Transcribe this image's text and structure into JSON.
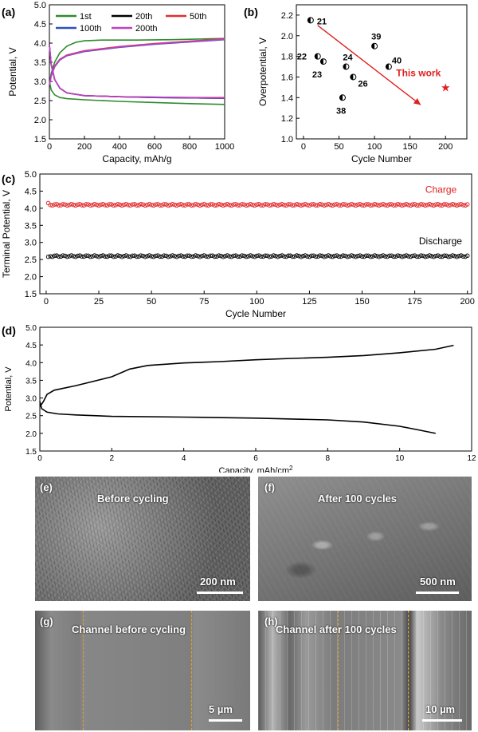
{
  "chart_data": [
    {
      "panel": "(a)",
      "type": "line",
      "xlabel": "Capacity, mAh/g",
      "ylabel": "Potential, V",
      "xlim": [
        0,
        1000
      ],
      "ylim": [
        1.5,
        5.0
      ],
      "xticks": [
        "0",
        "200",
        "400",
        "600",
        "800",
        "1000"
      ],
      "yticks": [
        "1.5",
        "2.0",
        "2.5",
        "3.0",
        "3.5",
        "4.0",
        "4.5",
        "5.0"
      ],
      "legend_placement": "top",
      "series": [
        {
          "name": "1st",
          "color": "#2e8b2e",
          "charge": [
            [
              0,
              2.9
            ],
            [
              10,
              3.2
            ],
            [
              30,
              3.5
            ],
            [
              60,
              3.75
            ],
            [
              100,
              3.92
            ],
            [
              150,
              4.02
            ],
            [
              200,
              4.06
            ],
            [
              300,
              4.08
            ],
            [
              500,
              4.08
            ],
            [
              700,
              4.09
            ],
            [
              1000,
              4.12
            ]
          ],
          "discharge": [
            [
              0,
              3.0
            ],
            [
              10,
              2.78
            ],
            [
              30,
              2.65
            ],
            [
              60,
              2.58
            ],
            [
              100,
              2.55
            ],
            [
              200,
              2.52
            ],
            [
              400,
              2.48
            ],
            [
              600,
              2.45
            ],
            [
              800,
              2.42
            ],
            [
              1000,
              2.4
            ]
          ]
        },
        {
          "name": "20th",
          "color": "#000000",
          "charge": [
            [
              0,
              2.9
            ],
            [
              10,
              3.15
            ],
            [
              30,
              3.4
            ],
            [
              60,
              3.58
            ],
            [
              100,
              3.68
            ],
            [
              200,
              3.79
            ],
            [
              400,
              3.9
            ],
            [
              600,
              3.98
            ],
            [
              800,
              4.04
            ],
            [
              1000,
              4.1
            ]
          ],
          "discharge": [
            [
              0,
              3.95
            ],
            [
              10,
              3.45
            ],
            [
              30,
              3.05
            ],
            [
              60,
              2.82
            ],
            [
              100,
              2.7
            ],
            [
              200,
              2.63
            ],
            [
              400,
              2.6
            ],
            [
              600,
              2.58
            ],
            [
              800,
              2.57
            ],
            [
              1000,
              2.56
            ]
          ]
        },
        {
          "name": "50th",
          "color": "#e03030",
          "charge": [
            [
              0,
              2.9
            ],
            [
              10,
              3.15
            ],
            [
              30,
              3.4
            ],
            [
              60,
              3.58
            ],
            [
              100,
              3.69
            ],
            [
              200,
              3.8
            ],
            [
              400,
              3.91
            ],
            [
              600,
              3.99
            ],
            [
              800,
              4.05
            ],
            [
              1000,
              4.11
            ]
          ],
          "discharge": [
            [
              0,
              3.95
            ],
            [
              10,
              3.45
            ],
            [
              30,
              3.05
            ],
            [
              60,
              2.82
            ],
            [
              100,
              2.7
            ],
            [
              200,
              2.63
            ],
            [
              400,
              2.6
            ],
            [
              600,
              2.59
            ],
            [
              800,
              2.58
            ],
            [
              1000,
              2.58
            ]
          ]
        },
        {
          "name": "100th",
          "color": "#3050c0",
          "charge": [
            [
              0,
              2.9
            ],
            [
              10,
              3.14
            ],
            [
              30,
              3.38
            ],
            [
              60,
              3.56
            ],
            [
              100,
              3.67
            ],
            [
              200,
              3.78
            ],
            [
              400,
              3.89
            ],
            [
              600,
              3.97
            ],
            [
              800,
              4.03
            ],
            [
              1000,
              4.09
            ]
          ],
          "discharge": [
            [
              0,
              3.95
            ],
            [
              10,
              3.45
            ],
            [
              30,
              3.05
            ],
            [
              60,
              2.82
            ],
            [
              100,
              2.7
            ],
            [
              200,
              2.63
            ],
            [
              400,
              2.6
            ],
            [
              600,
              2.58
            ],
            [
              800,
              2.57
            ],
            [
              1000,
              2.56
            ]
          ]
        },
        {
          "name": "200th",
          "color": "#c040c0",
          "charge": [
            [
              0,
              2.9
            ],
            [
              10,
              3.15
            ],
            [
              30,
              3.39
            ],
            [
              60,
              3.57
            ],
            [
              100,
              3.68
            ],
            [
              200,
              3.79
            ],
            [
              400,
              3.9
            ],
            [
              600,
              3.98
            ],
            [
              800,
              4.04
            ],
            [
              1000,
              4.1
            ]
          ],
          "discharge": [
            [
              0,
              3.95
            ],
            [
              10,
              3.45
            ],
            [
              30,
              3.05
            ],
            [
              60,
              2.82
            ],
            [
              100,
              2.7
            ],
            [
              200,
              2.63
            ],
            [
              400,
              2.6
            ],
            [
              600,
              2.59
            ],
            [
              800,
              2.58
            ],
            [
              1000,
              2.57
            ]
          ]
        }
      ]
    },
    {
      "panel": "(b)",
      "type": "scatter",
      "xlabel": "Cycle Number",
      "ylabel": "Overpotential, V",
      "xlim": [
        -10,
        230
      ],
      "ylim": [
        1.0,
        2.3
      ],
      "xticks": [
        "0",
        "50",
        "100",
        "150",
        "200"
      ],
      "yticks": [
        "1.0",
        "1.2",
        "1.4",
        "1.6",
        "1.8",
        "2.0",
        "2.2"
      ],
      "points": [
        {
          "label": "21",
          "x": 10,
          "y": 2.15,
          "color": "#000000"
        },
        {
          "label": "22",
          "x": 20,
          "y": 1.8,
          "color": "#000000"
        },
        {
          "label": "23",
          "x": 28,
          "y": 1.75,
          "color": "#000000"
        },
        {
          "label": "24",
          "x": 60,
          "y": 1.7,
          "color": "#000000"
        },
        {
          "label": "26",
          "x": 70,
          "y": 1.6,
          "color": "#000000"
        },
        {
          "label": "38",
          "x": 55,
          "y": 1.4,
          "color": "#000000"
        },
        {
          "label": "39",
          "x": 100,
          "y": 1.9,
          "color": "#000000"
        },
        {
          "label": "40",
          "x": 120,
          "y": 1.7,
          "color": "#000000"
        },
        {
          "label": "This work",
          "x": 200,
          "y": 1.5,
          "color": "#e02020"
        }
      ],
      "arrow": {
        "from": [
          20,
          2.1
        ],
        "to": [
          165,
          1.33
        ],
        "color": "#e02020"
      }
    },
    {
      "panel": "(c)",
      "type": "scatter",
      "xlabel": "Cycle Number",
      "ylabel": "Terminal Potential, V",
      "xlim": [
        -3,
        202
      ],
      "ylim": [
        1.5,
        5.0
      ],
      "xticks": [
        "0",
        "25",
        "50",
        "75",
        "100",
        "125",
        "150",
        "175",
        "200"
      ],
      "yticks": [
        "1.5",
        "2.0",
        "2.5",
        "3.0",
        "3.5",
        "4.0",
        "4.5",
        "5.0"
      ],
      "series": [
        {
          "name": "Charge",
          "color": "#e02020",
          "start": 4.15,
          "level": 4.1,
          "cycles": [
            1,
            200
          ]
        },
        {
          "name": "Discharge",
          "color": "#000000",
          "start": 2.58,
          "level": 2.6,
          "cycles": [
            1,
            200
          ]
        }
      ]
    },
    {
      "panel": "(d)",
      "type": "line",
      "xlabel": "Capacity, mAh/cm",
      "xlabel_sup": "2",
      "ylabel": "Potential, V",
      "xlim": [
        0,
        12
      ],
      "ylim": [
        1.5,
        5.0
      ],
      "xticks": [
        "0",
        "2",
        "4",
        "6",
        "8",
        "10",
        "12"
      ],
      "yticks": [
        "1.5",
        "2.0",
        "2.5",
        "3.0",
        "3.5",
        "4.0",
        "4.5",
        "5.0"
      ],
      "series": [
        {
          "id": "charge",
          "color": "#000000",
          "values": [
            [
              0,
              2.75
            ],
            [
              0.1,
              2.9
            ],
            [
              0.2,
              3.1
            ],
            [
              0.4,
              3.22
            ],
            [
              1,
              3.35
            ],
            [
              2,
              3.6
            ],
            [
              2.5,
              3.82
            ],
            [
              3,
              3.92
            ],
            [
              4,
              3.99
            ],
            [
              5,
              4.03
            ],
            [
              6,
              4.08
            ],
            [
              7,
              4.12
            ],
            [
              8,
              4.15
            ],
            [
              9,
              4.2
            ],
            [
              10,
              4.28
            ],
            [
              11,
              4.38
            ],
            [
              11.5,
              4.49
            ]
          ]
        },
        {
          "id": "discharge",
          "color": "#000000",
          "values": [
            [
              0,
              2.9
            ],
            [
              0.05,
              2.7
            ],
            [
              0.2,
              2.6
            ],
            [
              0.5,
              2.55
            ],
            [
              1,
              2.52
            ],
            [
              2,
              2.48
            ],
            [
              4,
              2.46
            ],
            [
              6,
              2.43
            ],
            [
              8,
              2.38
            ],
            [
              9,
              2.32
            ],
            [
              10,
              2.2
            ],
            [
              10.5,
              2.1
            ],
            [
              11,
              2.0
            ]
          ]
        }
      ]
    }
  ],
  "panels": {
    "a": "(a)",
    "b": "(b)",
    "c": "(c)",
    "d": "(d)",
    "e": "(e)",
    "f": "(f)",
    "g": "(g)",
    "h": "(h)"
  },
  "images": {
    "e": {
      "caption": "Before cycling",
      "scale": "200 nm"
    },
    "f": {
      "caption": "After 100 cycles",
      "scale": "500 nm"
    },
    "g": {
      "caption": "Channel before cycling",
      "scale": "5 µm"
    },
    "h": {
      "caption": "Channel after 100 cycles",
      "scale": "10 µm"
    }
  }
}
